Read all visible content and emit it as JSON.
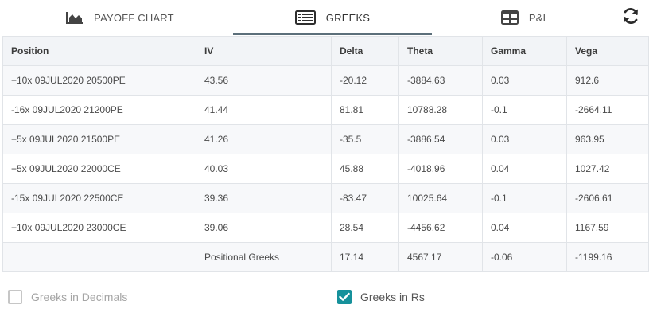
{
  "tabs": {
    "payoff_label": "PAYOFF CHART",
    "greeks_label": "GREEKS",
    "pnl_label": "P&L",
    "active": "GREEKS"
  },
  "icons": {
    "payoff": "area-chart-icon",
    "greeks": "table-list-icon",
    "pnl": "grid-table-icon",
    "refresh": "refresh-icon"
  },
  "table": {
    "headers": [
      "Position",
      "IV",
      "Delta",
      "Theta",
      "Gamma",
      "Vega"
    ],
    "rows": [
      [
        "+10x 09JUL2020 20500PE",
        "43.56",
        "-20.12",
        "-3884.63",
        "0.03",
        "912.6"
      ],
      [
        "-16x 09JUL2020 21200PE",
        "41.44",
        "81.81",
        "10788.28",
        "-0.1",
        "-2664.11"
      ],
      [
        "+5x 09JUL2020 21500PE",
        "41.26",
        "-35.5",
        "-3886.54",
        "0.03",
        "963.95"
      ],
      [
        "+5x 09JUL2020 22000CE",
        "40.03",
        "45.88",
        "-4018.96",
        "0.04",
        "1027.42"
      ],
      [
        "-15x 09JUL2020 22500CE",
        "39.36",
        "-83.47",
        "10025.64",
        "-0.1",
        "-2606.61"
      ],
      [
        "+10x 09JUL2020 23000CE",
        "39.06",
        "28.54",
        "-4456.62",
        "0.04",
        "1167.59"
      ]
    ],
    "totals": {
      "position": "",
      "label": "Positional Greeks",
      "delta": "17.14",
      "theta": "4567.17",
      "gamma": "-0.06",
      "vega": "-1199.16"
    }
  },
  "options": {
    "decimals_label": "Greeks in Decimals",
    "decimals_checked": false,
    "rs_label": "Greeks in Rs",
    "rs_checked": true
  },
  "colors": {
    "accent": "#16919b",
    "active_tab_underline": "#5c6f7a",
    "header_bg": "#f2f4f7"
  }
}
